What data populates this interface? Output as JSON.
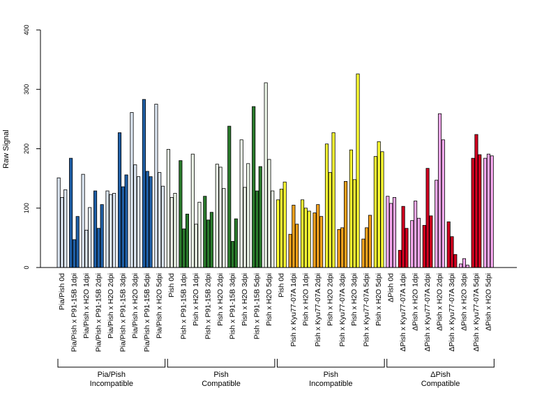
{
  "chart_data": {
    "type": "bar",
    "ylabel": "Raw Signal",
    "ylim": [
      0,
      400
    ],
    "yticks": [
      0,
      100,
      200,
      300,
      400
    ],
    "replicates_per_category": 3,
    "categories": [
      "Pia/Pish 0d",
      "Pia/Pish x P91-15B 1dpi",
      "Pia/Pish x H2O 1dpi",
      "Pia/Pish x P91-15B 2dpi",
      "Pia/Pish x H2O 2dpi",
      "Pia/Pish x P91-15B 3dpi",
      "Pia/Pish x H2O 3dpi",
      "Pia/Pish x P91-15B 5dpi",
      "Pia/Pish x H2O 5dpi",
      "Pish 0d",
      "Pish x P91-15B 1dpi",
      "Pish x H2O 1dpi",
      "Pish x P91-15B 2dpi",
      "Pish x H2O 2dpi",
      "Pish x P91-15B 3dpi",
      "Pish x H2O 3dpi",
      "Pish x P91-15B 5dpi",
      "Pish x H2O 5dpi",
      "Pish 0d",
      "Pish x Kyu77-07A 1dpi",
      "Pish x H2O 1dpi",
      "Pish x Kyu77-07A 2dpi",
      "Pish x H2O 2dpi",
      "Pish x Kyu77-07A 3dpi",
      "Pish x H2O 3dpi",
      "Pish x Kyu77-07A 5dpi",
      "Pish x H2O 5dpi",
      "ΔPish 0d",
      "ΔPish x Kyu77-07A 1dpi",
      "ΔPish x H2O 1dpi",
      "ΔPish x Kyu77-07A 2dpi",
      "ΔPish x H2O 2dpi",
      "ΔPish x Kyu77-07A 3dpi",
      "ΔPish x H2O 3dpi",
      "ΔPish x Kyu77-07A 5dpi",
      "ΔPish x H2O 5dpi"
    ],
    "values": [
      [
        151,
        118,
        131
      ],
      [
        184,
        47,
        86
      ],
      [
        157,
        63,
        101
      ],
      [
        129,
        66,
        106
      ],
      [
        129,
        123,
        125
      ],
      [
        227,
        136,
        156
      ],
      [
        261,
        173,
        153
      ],
      [
        283,
        162,
        153
      ],
      [
        275,
        160,
        137
      ],
      [
        199,
        118,
        125
      ],
      [
        180,
        65,
        90
      ],
      [
        191,
        73,
        110
      ],
      [
        120,
        80,
        93
      ],
      [
        174,
        169,
        133
      ],
      [
        238,
        44,
        82
      ],
      [
        215,
        135,
        175
      ],
      [
        271,
        129,
        170
      ],
      [
        311,
        182,
        129
      ],
      [
        114,
        132,
        144
      ],
      [
        56,
        105,
        73
      ],
      [
        114,
        100,
        95
      ],
      [
        92,
        106,
        86
      ],
      [
        208,
        160,
        227
      ],
      [
        64,
        67,
        145
      ],
      [
        198,
        148,
        326
      ],
      [
        48,
        67,
        88
      ],
      [
        187,
        212,
        195
      ],
      [
        120,
        108,
        118
      ],
      [
        29,
        103,
        66
      ],
      [
        79,
        112,
        83
      ],
      [
        71,
        167,
        87
      ],
      [
        147,
        259,
        215
      ],
      [
        77,
        52,
        22
      ],
      [
        6,
        15,
        4
      ],
      [
        184,
        224,
        190
      ],
      [
        184,
        191,
        188
      ]
    ],
    "colors": {
      "light_blue": "#dce6f2",
      "dark_blue": "#1f5fa6",
      "light_green": "#edf7e8",
      "dark_green": "#2a7a2c",
      "yellow": "#ffff33",
      "orange": "#f5a21c",
      "pink": "#f5a8ee",
      "red": "#d1001f"
    },
    "category_colors": [
      "light_blue",
      "dark_blue",
      "light_blue",
      "dark_blue",
      "light_blue",
      "dark_blue",
      "light_blue",
      "dark_blue",
      "light_blue",
      "light_green",
      "dark_green",
      "light_green",
      "dark_green",
      "light_green",
      "dark_green",
      "light_green",
      "dark_green",
      "light_green",
      "yellow",
      "orange",
      "yellow",
      "orange",
      "yellow",
      "orange",
      "yellow",
      "orange",
      "yellow",
      "pink",
      "red",
      "pink",
      "red",
      "pink",
      "red",
      "pink",
      "red",
      "pink"
    ],
    "groups": [
      {
        "line1": "Pia/Pish",
        "line2": "Incompatible"
      },
      {
        "line1": "Pish",
        "line2": "Compatible"
      },
      {
        "line1": "Pish",
        "line2": "Incompatible"
      },
      {
        "line1": "ΔPish",
        "line2": "Compatible"
      }
    ],
    "categories_per_group": 9
  }
}
